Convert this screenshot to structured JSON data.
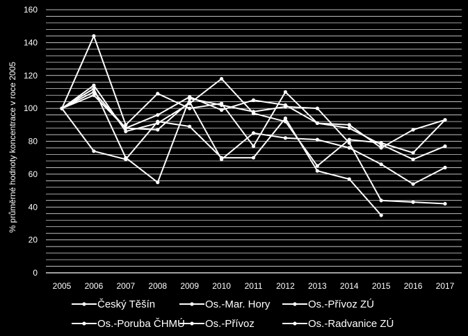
{
  "chart_data": {
    "type": "line",
    "ylabel": "% průměrné hodnoty  koncentrace v roce 2005",
    "xlabel": "",
    "x": [
      "2005",
      "2006",
      "2007",
      "2008",
      "2009",
      "2010",
      "2011",
      "2012",
      "2013",
      "2014",
      "2015",
      "2016",
      "2017"
    ],
    "yticks": [
      "0",
      "20",
      "40",
      "60",
      "80",
      "100",
      "120",
      "140",
      "160"
    ],
    "ylim": [
      0,
      160
    ],
    "grid": true,
    "legend_position": "bottom",
    "line_color": "#ffffff",
    "background": "#000000",
    "series": [
      {
        "name": "Český Těšín",
        "values": [
          100,
          144,
          90,
          109,
          100,
          103,
          77,
          110,
          91,
          88,
          78,
          69,
          77
        ]
      },
      {
        "name": "Os.-Mar. Hory",
        "values": [
          100,
          112,
          70,
          55,
          106,
          102,
          98,
          101,
          100,
          79,
          44,
          43,
          42
        ]
      },
      {
        "name": "Os.-Přívoz ZÚ",
        "values": [
          100,
          74,
          69,
          92,
          89,
          70,
          70,
          94,
          62,
          57,
          35,
          null,
          null
        ]
      },
      {
        "name": "Os.-Poruba ČHMÚ",
        "values": [
          100,
          108,
          88,
          96,
          107,
          99,
          105,
          102,
          91,
          90,
          76,
          87,
          93
        ]
      },
      {
        "name": "Os.-Přívoz",
        "values": [
          100,
          114,
          86,
          91,
          103,
          118,
          97,
          92,
          65,
          81,
          79,
          73,
          93
        ]
      },
      {
        "name": "Os.-Radvanice ZÚ",
        "values": [
          100,
          110,
          88,
          87,
          104,
          69,
          85,
          82,
          81,
          76,
          66,
          54,
          64
        ]
      }
    ]
  }
}
